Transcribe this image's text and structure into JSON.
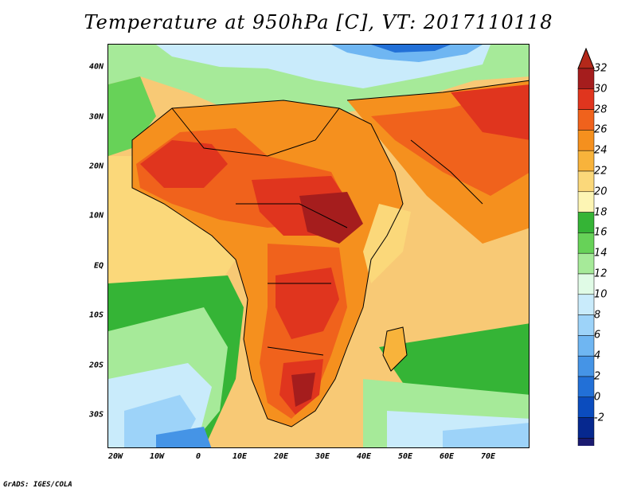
{
  "title": "Temperature at 950hPa [C], VT: 2017110118",
  "footer": "GrADS: IGES/COLA",
  "map": {
    "lat_labels": [
      {
        "label": "40N",
        "lat": 40
      },
      {
        "label": "30N",
        "lat": 30
      },
      {
        "label": "20N",
        "lat": 20
      },
      {
        "label": "10N",
        "lat": 10
      },
      {
        "label": "EQ",
        "lat": 0
      },
      {
        "label": "10S",
        "lat": -10
      },
      {
        "label": "20S",
        "lat": -20
      },
      {
        "label": "30S",
        "lat": -30
      }
    ],
    "lon_labels": [
      {
        "label": "20W",
        "lon": -20
      },
      {
        "label": "10W",
        "lon": -10
      },
      {
        "label": "0",
        "lon": 0
      },
      {
        "label": "10E",
        "lon": 10
      },
      {
        "label": "20E",
        "lon": 20
      },
      {
        "label": "30E",
        "lon": 30
      },
      {
        "label": "40E",
        "lon": 40
      },
      {
        "label": "50E",
        "lon": 50
      },
      {
        "label": "60E",
        "lon": 60
      },
      {
        "label": "70E",
        "lon": 70
      }
    ],
    "lat_range": [
      -36,
      45
    ],
    "lon_range": [
      -22,
      80
    ]
  },
  "colorbar": {
    "unit": "C",
    "levels": [
      "32",
      "30",
      "28",
      "26",
      "24",
      "22",
      "20",
      "18",
      "16",
      "14",
      "12",
      "10",
      "8",
      "6",
      "4",
      "2",
      "0",
      "-2"
    ],
    "colors": [
      "#a51d1d",
      "#e0351e",
      "#f0621c",
      "#f5901e",
      "#f8b33b",
      "#fbd87a",
      "#fdf5b4",
      "#35b436",
      "#67d258",
      "#a6ea99",
      "#e0fbe6",
      "#c9ebfb",
      "#9dd3f9",
      "#6fb6f2",
      "#4594e6",
      "#2270d7",
      "#0b4cbe",
      "#06288f",
      "#1a1a70"
    ],
    "max_arrow_color": "#b3281a",
    "min_arrow_color": "#d9d9f7"
  }
}
